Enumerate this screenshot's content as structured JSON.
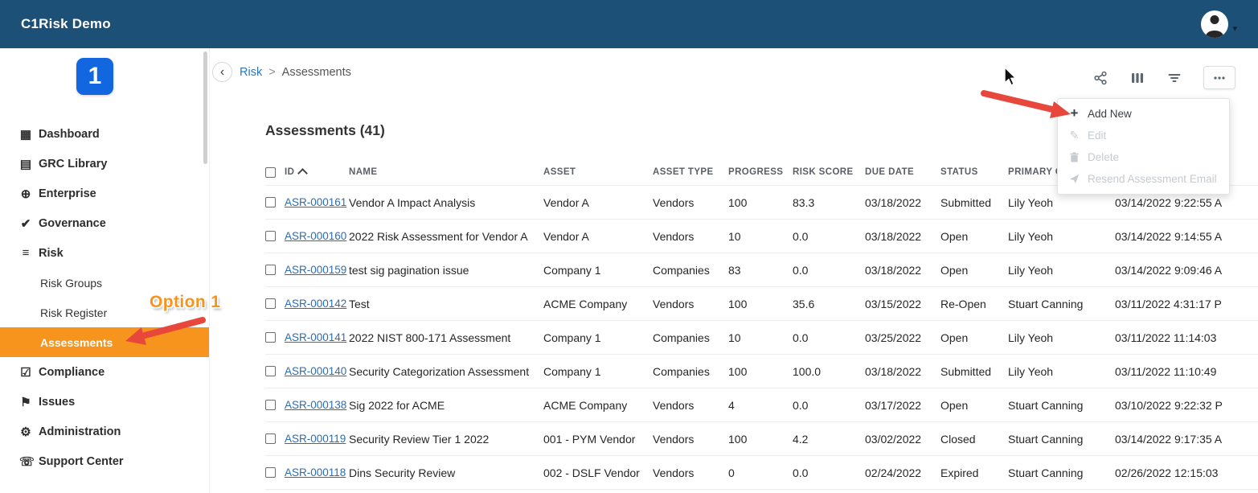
{
  "app": {
    "title": "C1Risk Demo"
  },
  "header": {
    "user_icons": [
      "person-icon",
      "chevron-down-icon"
    ]
  },
  "sidebar": {
    "items": [
      {
        "label": "Dashboard",
        "icon": "dashboard-icon"
      },
      {
        "label": "GRC Library",
        "icon": "library-icon"
      },
      {
        "label": "Enterprise",
        "icon": "enterprise-icon"
      },
      {
        "label": "Governance",
        "icon": "governance-icon"
      },
      {
        "label": "Risk",
        "icon": "risk-icon",
        "children": [
          "Risk Groups",
          "Risk Register",
          "Assessments"
        ],
        "active_child": "Assessments"
      },
      {
        "label": "Compliance",
        "icon": "compliance-icon"
      },
      {
        "label": "Issues",
        "icon": "issues-icon"
      },
      {
        "label": "Administration",
        "icon": "administration-icon"
      },
      {
        "label": "Support Center",
        "icon": "support-icon"
      }
    ]
  },
  "breadcrumb": {
    "parent": "Risk",
    "separator": ">",
    "current": "Assessments"
  },
  "toolbar": {
    "icons": [
      "share-icon",
      "columns-icon",
      "filter-icon",
      "more-icon"
    ]
  },
  "context_menu": {
    "items": [
      {
        "label": "Add New",
        "icon": "plus-icon",
        "enabled": true
      },
      {
        "label": "Edit",
        "icon": "edit-icon",
        "enabled": false
      },
      {
        "label": "Delete",
        "icon": "delete-icon",
        "enabled": false
      },
      {
        "label": "Resend Assessment Email",
        "icon": "send-icon",
        "enabled": false
      }
    ]
  },
  "table": {
    "title": "Assessments (41)",
    "columns": [
      "ID",
      "NAME",
      "ASSET",
      "ASSET TYPE",
      "PROGRESS",
      "RISK SCORE",
      "DUE DATE",
      "STATUS",
      "PRIMARY C",
      ""
    ],
    "sort": {
      "column": "ID",
      "direction": "ascending"
    },
    "rows": [
      {
        "id": "ASR-000161",
        "name": "Vendor A Impact Analysis",
        "asset": "Vendor A",
        "asset_type": "Vendors",
        "progress": "100",
        "risk_score": "83.3",
        "due_date": "03/18/2022",
        "status": "Submitted",
        "primary": "Lily Yeoh",
        "created": "03/14/2022 9:22:55 A"
      },
      {
        "id": "ASR-000160",
        "name": "2022 Risk Assessment for Vendor A",
        "asset": "Vendor A",
        "asset_type": "Vendors",
        "progress": "10",
        "risk_score": "0.0",
        "due_date": "03/18/2022",
        "status": "Open",
        "primary": "Lily Yeoh",
        "created": "03/14/2022 9:14:55 A"
      },
      {
        "id": "ASR-000159",
        "name": "test sig pagination issue",
        "asset": "Company 1",
        "asset_type": "Companies",
        "progress": "83",
        "risk_score": "0.0",
        "due_date": "03/18/2022",
        "status": "Open",
        "primary": "Lily Yeoh",
        "created": "03/14/2022 9:09:46 A"
      },
      {
        "id": "ASR-000142",
        "name": "Test",
        "asset": "ACME Company",
        "asset_type": "Vendors",
        "progress": "100",
        "risk_score": "35.6",
        "due_date": "03/15/2022",
        "status": "Re-Open",
        "primary": "Stuart Canning",
        "created": "03/11/2022 4:31:17 P"
      },
      {
        "id": "ASR-000141",
        "name": "2022 NIST 800-171 Assessment",
        "asset": "Company 1",
        "asset_type": "Companies",
        "progress": "10",
        "risk_score": "0.0",
        "due_date": "03/25/2022",
        "status": "Open",
        "primary": "Lily Yeoh",
        "created": "03/11/2022 11:14:03"
      },
      {
        "id": "ASR-000140",
        "name": "Security Categorization Assessment",
        "asset": "Company 1",
        "asset_type": "Companies",
        "progress": "100",
        "risk_score": "100.0",
        "due_date": "03/18/2022",
        "status": "Submitted",
        "primary": "Lily Yeoh",
        "created": "03/11/2022 11:10:49"
      },
      {
        "id": "ASR-000138",
        "name": "Sig 2022 for ACME",
        "asset": "ACME Company",
        "asset_type": "Vendors",
        "progress": "4",
        "risk_score": "0.0",
        "due_date": "03/17/2022",
        "status": "Open",
        "primary": "Stuart Canning",
        "created": "03/10/2022 9:22:32 P"
      },
      {
        "id": "ASR-000119",
        "name": "Security Review Tier 1 2022",
        "asset": "001 - PYM Vendor",
        "asset_type": "Vendors",
        "progress": "100",
        "risk_score": "4.2",
        "due_date": "03/02/2022",
        "status": "Closed",
        "primary": "Stuart Canning",
        "created": "03/14/2022 9:17:35 A"
      },
      {
        "id": "ASR-000118",
        "name": "Dins Security Review",
        "asset": "002 - DSLF Vendor",
        "asset_type": "Vendors",
        "progress": "0",
        "risk_score": "0.0",
        "due_date": "02/24/2022",
        "status": "Expired",
        "primary": "Stuart Canning",
        "created": "02/26/2022 12:15:03"
      }
    ]
  },
  "annotations": {
    "option_label": "Option 1"
  },
  "colors": {
    "header_bg": "#1d5077",
    "accent_orange": "#f7941d",
    "link_blue": "#2a6db5",
    "arrow_red": "#e8483b",
    "logo_blue": "#1266e0"
  }
}
